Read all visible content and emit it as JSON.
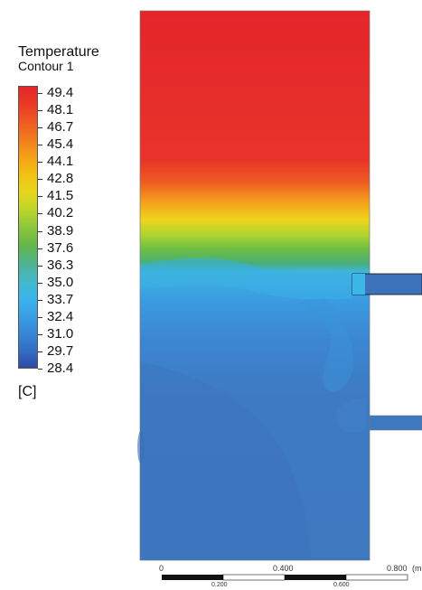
{
  "legend": {
    "title": "Temperature",
    "subtitle": "Contour 1",
    "unit": "[C]",
    "levels": [
      "49.4",
      "48.1",
      "46.7",
      "45.4",
      "44.1",
      "42.8",
      "41.5",
      "40.2",
      "38.9",
      "37.6",
      "36.3",
      "35.0",
      "33.7",
      "32.4",
      "31.0",
      "29.7",
      "28.4"
    ],
    "colors_top_to_bottom": [
      "#e4262a",
      "#ea3a25",
      "#ee5a22",
      "#f27d1e",
      "#f6a117",
      "#f3c114",
      "#e6d51c",
      "#bcd62a",
      "#8cc63a",
      "#64b74b",
      "#4fb28c",
      "#45b8c8",
      "#3ab5ea",
      "#3aa0e6",
      "#3787d7",
      "#336fc4",
      "#2f4aa5"
    ]
  },
  "domain": {
    "hot_color": "#e4262a",
    "cold_color": "#3e79c0"
  },
  "scale_bar": {
    "top_labels": [
      "0",
      "0.400",
      "0.800"
    ],
    "bottom_labels": [
      "0.200",
      "0.600"
    ],
    "unit": "(m"
  }
}
